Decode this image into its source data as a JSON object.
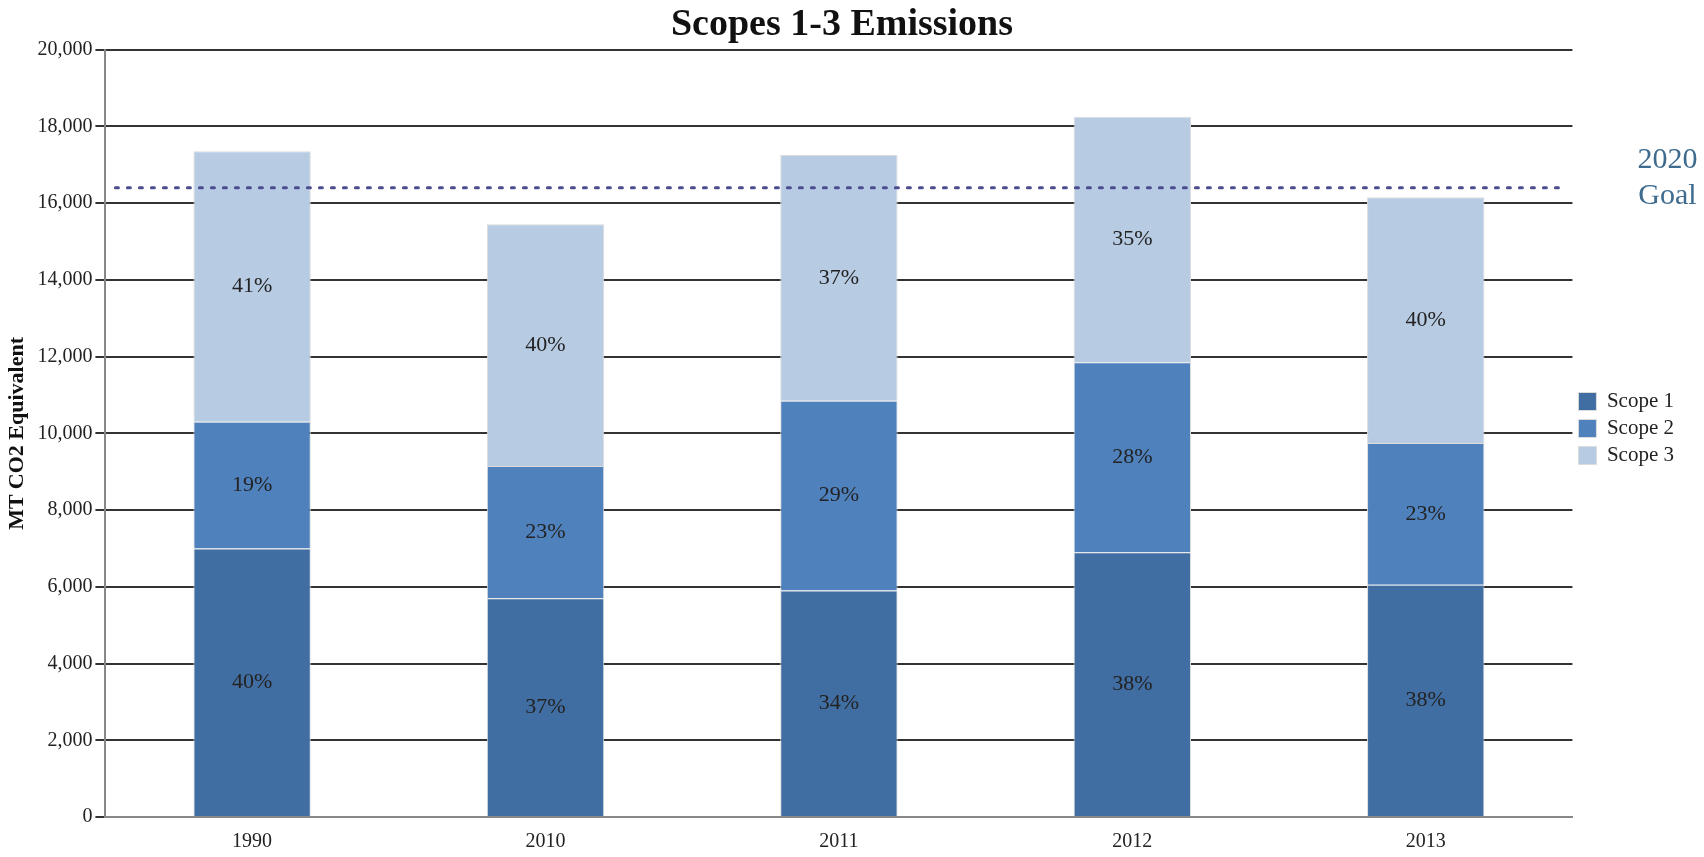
{
  "chart_data": {
    "type": "bar",
    "title": "Scopes 1-3 Emissions",
    "ylabel": "MT CO2 Equivalent",
    "categories": [
      "1990",
      "2010",
      "2011",
      "2012",
      "2013"
    ],
    "stacked": true,
    "series": [
      {
        "name": "Scope 1",
        "color": "#416ea2",
        "values": [
          7000,
          5700,
          5900,
          6900,
          6050
        ]
      },
      {
        "name": "Scope 2",
        "color": "#4f81bd",
        "values": [
          3300,
          3450,
          4950,
          4950,
          3700
        ]
      },
      {
        "name": "Scope 3",
        "color": "#b7cbe3",
        "values": [
          7050,
          6300,
          6400,
          6400,
          6400
        ]
      }
    ],
    "annotations": [
      "40%",
      "19%",
      "41%",
      "37%",
      "23%",
      "40%",
      "34%",
      "29%",
      "37%",
      "38%",
      "28%",
      "35%",
      "38%",
      "23%",
      "40%"
    ],
    "ylim": [
      0,
      20000
    ],
    "yticks": [
      0,
      {
        "value": 2000,
        "label": "2,000"
      },
      {
        "value": 4000,
        "label": "4,000"
      },
      {
        "value": 6000,
        "label": "6,000"
      },
      {
        "value": 8000,
        "label": "8,000"
      },
      {
        "value": 10000,
        "label": "10,000"
      },
      {
        "value": 12000,
        "label": "12,000"
      },
      {
        "value": 14000,
        "label": "14,000"
      },
      {
        "value": 16000,
        "label": "16,000"
      },
      {
        "value": 18000,
        "label": "18,000"
      },
      {
        "value": 20000,
        "label": "20,000"
      }
    ],
    "grid": "y",
    "legend": "right",
    "ref_lines": [
      {
        "axis": "y",
        "value": 16400,
        "label": "2020 Goal",
        "color": "#4b4b8f",
        "line_style": "dotted"
      }
    ]
  }
}
